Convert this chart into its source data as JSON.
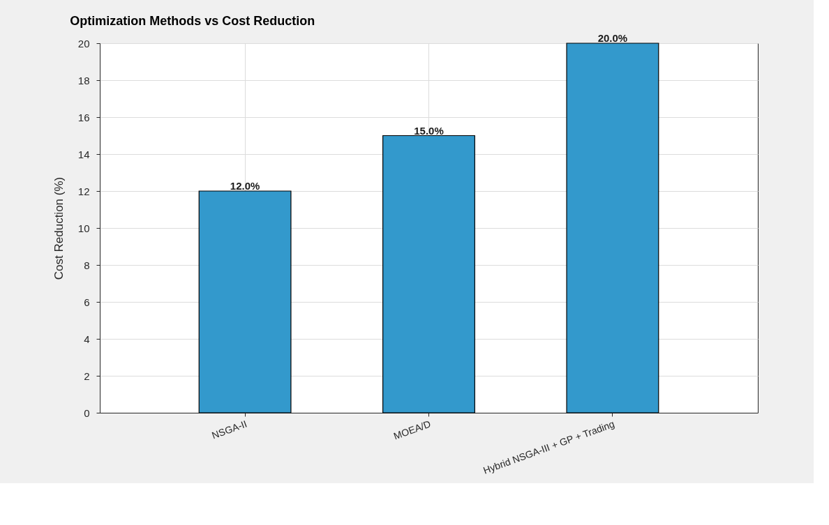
{
  "chart_data": {
    "type": "bar",
    "title": "Optimization Methods vs Cost Reduction",
    "ylabel": "Cost Reduction (%)",
    "categories": [
      "NSGA-II",
      "MOEA/D",
      "Hybrid NSGA-III + GP + Trading"
    ],
    "values": [
      12,
      15,
      20
    ],
    "color": "#3399cc",
    "value_labels": [
      "12.0%",
      "15.0%",
      "20.0%"
    ],
    "ylim": [
      0,
      20
    ],
    "yticks": [
      0,
      2,
      4,
      6,
      8,
      10,
      12,
      14,
      16,
      18,
      20
    ],
    "grid": true
  }
}
